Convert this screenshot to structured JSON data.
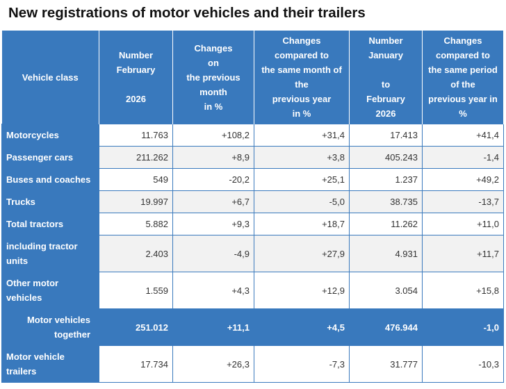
{
  "title": "New registrations of motor vehicles and their trailers",
  "columns": [
    {
      "lines": [
        "Vehicle class"
      ]
    },
    {
      "lines": [
        "Number",
        "February",
        "",
        "2026"
      ]
    },
    {
      "lines": [
        "Changes",
        "on",
        "the previous",
        "month",
        "in %"
      ]
    },
    {
      "lines": [
        "Changes",
        "compared to",
        "the same month of",
        "the",
        "previous year",
        "in %"
      ]
    },
    {
      "lines": [
        "Number",
        "January",
        "",
        "to",
        "February",
        "2026"
      ]
    },
    {
      "lines": [
        "Changes",
        "compared to",
        "the same period",
        "of the",
        "previous year in",
        "%"
      ]
    }
  ],
  "rows": [
    {
      "label": [
        "Motorcycles"
      ],
      "values": [
        "11.763",
        "+108,2",
        "+31,4",
        "17.413",
        "+41,4"
      ]
    },
    {
      "label": [
        "Passenger cars"
      ],
      "values": [
        "211.262",
        "+8,9",
        "+3,8",
        "405.243",
        "-1,4"
      ]
    },
    {
      "label": [
        "Buses and coaches"
      ],
      "values": [
        "549",
        "-20,2",
        "+25,1",
        "1.237",
        "+49,2"
      ]
    },
    {
      "label": [
        "Trucks"
      ],
      "values": [
        "19.997",
        "+6,7",
        "-5,0",
        "38.735",
        "-13,7"
      ]
    },
    {
      "label": [
        "Total tractors"
      ],
      "values": [
        "5.882",
        "+9,3",
        "+18,7",
        "11.262",
        "+11,0"
      ]
    },
    {
      "label": [
        "including tractor",
        "units"
      ],
      "values": [
        "2.403",
        "-4,9",
        "+27,9",
        "4.931",
        "+11,7"
      ]
    },
    {
      "label": [
        "Other motor",
        "vehicles"
      ],
      "values": [
        "1.559",
        "+4,3",
        "+12,9",
        "3.054",
        "+15,8"
      ]
    },
    {
      "label": [
        "Motor vehicles",
        "together"
      ],
      "values": [
        "251.012",
        "+11,1",
        "+4,5",
        "476.944",
        "-1,0"
      ]
    },
    {
      "label": [
        "Motor vehicle",
        "trailers"
      ],
      "values": [
        "17.734",
        "+26,3",
        "-7,3",
        "31.777",
        "-10,3"
      ]
    }
  ],
  "colors": {
    "header_blue": "#3979bd",
    "alt_row": "#f2f2f2"
  }
}
